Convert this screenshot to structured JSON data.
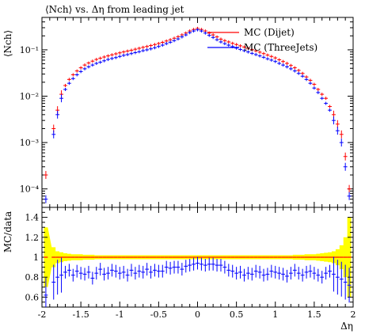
{
  "chart_data": {
    "type": "scatter",
    "title": "⟨Nch⟩ vs. Δη from leading jet",
    "top_panel": {
      "ylabel": "⟨Nch⟩",
      "yscale": "log",
      "ylim": [
        4e-05,
        0.5
      ],
      "yticks": [
        0.0001,
        0.001,
        0.01,
        0.1
      ],
      "yticklabels": [
        "10⁻⁴",
        "10⁻³",
        "10⁻²",
        "10⁻¹"
      ],
      "series": [
        {
          "name": "MC (Dijet)",
          "color": "#ff0000",
          "x": [
            -1.95,
            -1.85,
            -1.8,
            -1.75,
            -1.7,
            -1.65,
            -1.6,
            -1.55,
            -1.5,
            -1.45,
            -1.4,
            -1.35,
            -1.3,
            -1.25,
            -1.2,
            -1.15,
            -1.1,
            -1.05,
            -1.0,
            -0.95,
            -0.9,
            -0.85,
            -0.8,
            -0.75,
            -0.7,
            -0.65,
            -0.6,
            -0.55,
            -0.5,
            -0.45,
            -0.4,
            -0.35,
            -0.3,
            -0.25,
            -0.2,
            -0.15,
            -0.1,
            -0.05,
            0.0,
            0.05,
            0.1,
            0.15,
            0.2,
            0.25,
            0.3,
            0.35,
            0.4,
            0.45,
            0.5,
            0.55,
            0.6,
            0.65,
            0.7,
            0.75,
            0.8,
            0.85,
            0.9,
            0.95,
            1.0,
            1.05,
            1.1,
            1.15,
            1.2,
            1.25,
            1.3,
            1.35,
            1.4,
            1.45,
            1.5,
            1.55,
            1.6,
            1.65,
            1.7,
            1.75,
            1.8,
            1.85,
            1.9,
            1.95
          ],
          "y": [
            0.0002,
            0.002,
            0.005,
            0.011,
            0.017,
            0.023,
            0.029,
            0.035,
            0.041,
            0.047,
            0.052,
            0.057,
            0.062,
            0.066,
            0.07,
            0.074,
            0.078,
            0.082,
            0.086,
            0.09,
            0.094,
            0.098,
            0.103,
            0.108,
            0.113,
            0.118,
            0.124,
            0.13,
            0.137,
            0.145,
            0.155,
            0.165,
            0.178,
            0.192,
            0.21,
            0.23,
            0.255,
            0.275,
            0.29,
            0.275,
            0.255,
            0.23,
            0.21,
            0.19,
            0.17,
            0.158,
            0.148,
            0.138,
            0.13,
            0.122,
            0.115,
            0.108,
            0.101,
            0.095,
            0.089,
            0.083,
            0.077,
            0.072,
            0.067,
            0.061,
            0.056,
            0.051,
            0.046,
            0.041,
            0.036,
            0.031,
            0.026,
            0.022,
            0.018,
            0.014,
            0.011,
            0.009,
            0.006,
            0.004,
            0.0025,
            0.0015,
            0.0005,
            0.0001
          ]
        },
        {
          "name": "MC (ThreeJets)",
          "color": "#0000ff",
          "x": [
            -1.95,
            -1.85,
            -1.8,
            -1.75,
            -1.7,
            -1.65,
            -1.6,
            -1.55,
            -1.5,
            -1.45,
            -1.4,
            -1.35,
            -1.3,
            -1.25,
            -1.2,
            -1.15,
            -1.1,
            -1.05,
            -1.0,
            -0.95,
            -0.9,
            -0.85,
            -0.8,
            -0.75,
            -0.7,
            -0.65,
            -0.6,
            -0.55,
            -0.5,
            -0.45,
            -0.4,
            -0.35,
            -0.3,
            -0.25,
            -0.2,
            -0.15,
            -0.1,
            -0.05,
            0.0,
            0.05,
            0.1,
            0.15,
            0.2,
            0.25,
            0.3,
            0.35,
            0.4,
            0.45,
            0.5,
            0.55,
            0.6,
            0.65,
            0.7,
            0.75,
            0.8,
            0.85,
            0.9,
            0.95,
            1.0,
            1.05,
            1.1,
            1.15,
            1.2,
            1.25,
            1.3,
            1.35,
            1.4,
            1.45,
            1.5,
            1.55,
            1.6,
            1.65,
            1.7,
            1.75,
            1.8,
            1.85,
            1.9,
            1.95
          ],
          "y": [
            6e-05,
            0.0015,
            0.004,
            0.009,
            0.014,
            0.019,
            0.024,
            0.029,
            0.034,
            0.039,
            0.043,
            0.047,
            0.051,
            0.054,
            0.058,
            0.062,
            0.065,
            0.068,
            0.072,
            0.076,
            0.079,
            0.083,
            0.087,
            0.091,
            0.096,
            0.1,
            0.105,
            0.111,
            0.118,
            0.126,
            0.136,
            0.146,
            0.158,
            0.172,
            0.19,
            0.21,
            0.235,
            0.255,
            0.27,
            0.255,
            0.23,
            0.205,
            0.185,
            0.165,
            0.148,
            0.136,
            0.126,
            0.117,
            0.109,
            0.102,
            0.096,
            0.09,
            0.084,
            0.079,
            0.074,
            0.069,
            0.064,
            0.06,
            0.056,
            0.051,
            0.047,
            0.043,
            0.039,
            0.035,
            0.031,
            0.027,
            0.023,
            0.019,
            0.015,
            0.012,
            0.009,
            0.007,
            0.005,
            0.003,
            0.0018,
            0.001,
            0.0003,
            7e-05
          ]
        }
      ],
      "legend": "top-right"
    },
    "bottom_panel": {
      "ylabel": "MC/data",
      "ylim": [
        0.5,
        1.5
      ],
      "yticks": [
        0.6,
        0.8,
        1.0,
        1.2,
        1.4
      ],
      "yticklabels": [
        "0.6",
        "0.8",
        "1",
        "1.2",
        "1.4"
      ],
      "reference": 1.0,
      "band_color": "#ffff00",
      "ratio_dijet": {
        "color": "#ff0000",
        "values": [
          1.0,
          1.0,
          1.0,
          1.0,
          1.0,
          1.0,
          1.0,
          1.0,
          1.0,
          1.0,
          1.0,
          1.0,
          1.0,
          1.0,
          1.0,
          1.0,
          1.0,
          1.0,
          1.0,
          1.0,
          1.0,
          1.0,
          1.0,
          1.0,
          1.0,
          1.0,
          1.0,
          1.0,
          1.0,
          1.0,
          1.0,
          1.0,
          1.0,
          1.0,
          1.0,
          1.0,
          1.0,
          1.0,
          1.0,
          1.0,
          1.0,
          1.0,
          1.0,
          1.0,
          1.0,
          1.0,
          1.0,
          1.0,
          1.0,
          1.0,
          1.0,
          1.0,
          1.0,
          1.0,
          1.0,
          1.0,
          1.0,
          1.0,
          1.0,
          1.0,
          1.0,
          1.0,
          1.0,
          1.0,
          1.0,
          1.0,
          1.0,
          1.0,
          1.0,
          1.0,
          1.0,
          1.0,
          1.0,
          1.0,
          1.0,
          1.0,
          1.0,
          1.0
        ]
      },
      "ratio_threejets": {
        "color": "#0000ff",
        "values": [
          0.62,
          0.75,
          0.8,
          0.82,
          0.85,
          0.87,
          0.82,
          0.86,
          0.84,
          0.83,
          0.85,
          0.79,
          0.84,
          0.88,
          0.83,
          0.84,
          0.87,
          0.86,
          0.84,
          0.85,
          0.82,
          0.87,
          0.84,
          0.86,
          0.85,
          0.88,
          0.85,
          0.87,
          0.86,
          0.86,
          0.9,
          0.89,
          0.9,
          0.9,
          0.88,
          0.91,
          0.92,
          0.93,
          0.94,
          0.93,
          0.92,
          0.93,
          0.93,
          0.92,
          0.92,
          0.9,
          0.87,
          0.86,
          0.84,
          0.85,
          0.82,
          0.84,
          0.83,
          0.86,
          0.85,
          0.82,
          0.83,
          0.86,
          0.85,
          0.84,
          0.83,
          0.81,
          0.84,
          0.87,
          0.84,
          0.82,
          0.85,
          0.86,
          0.84,
          0.82,
          0.8,
          0.84,
          0.86,
          0.83,
          0.8,
          0.78,
          0.75,
          0.72
        ]
      },
      "band_halfwidth": [
        0.3,
        0.1,
        0.06,
        0.05,
        0.04,
        0.035,
        0.03,
        0.03,
        0.03,
        0.025,
        0.025,
        0.025,
        0.02,
        0.02,
        0.02,
        0.02,
        0.02,
        0.02,
        0.02,
        0.02,
        0.02,
        0.02,
        0.02,
        0.02,
        0.02,
        0.02,
        0.02,
        0.02,
        0.02,
        0.02,
        0.02,
        0.02,
        0.02,
        0.02,
        0.02,
        0.02,
        0.02,
        0.02,
        0.02,
        0.02,
        0.02,
        0.02,
        0.02,
        0.02,
        0.02,
        0.02,
        0.02,
        0.02,
        0.02,
        0.02,
        0.02,
        0.02,
        0.02,
        0.02,
        0.02,
        0.02,
        0.02,
        0.02,
        0.02,
        0.02,
        0.02,
        0.02,
        0.02,
        0.025,
        0.025,
        0.025,
        0.03,
        0.03,
        0.03,
        0.035,
        0.04,
        0.045,
        0.05,
        0.06,
        0.08,
        0.12,
        0.2,
        0.4
      ]
    },
    "xlabel": "Δη",
    "xlim": [
      -2,
      2
    ],
    "xticks": [
      -2,
      -1.5,
      -1,
      -0.5,
      0,
      0.5,
      1,
      1.5,
      2
    ],
    "xticklabels": [
      "-2",
      "-1.5",
      "-1",
      "-0.5",
      "0",
      "0.5",
      "1",
      "1.5",
      "2"
    ]
  }
}
